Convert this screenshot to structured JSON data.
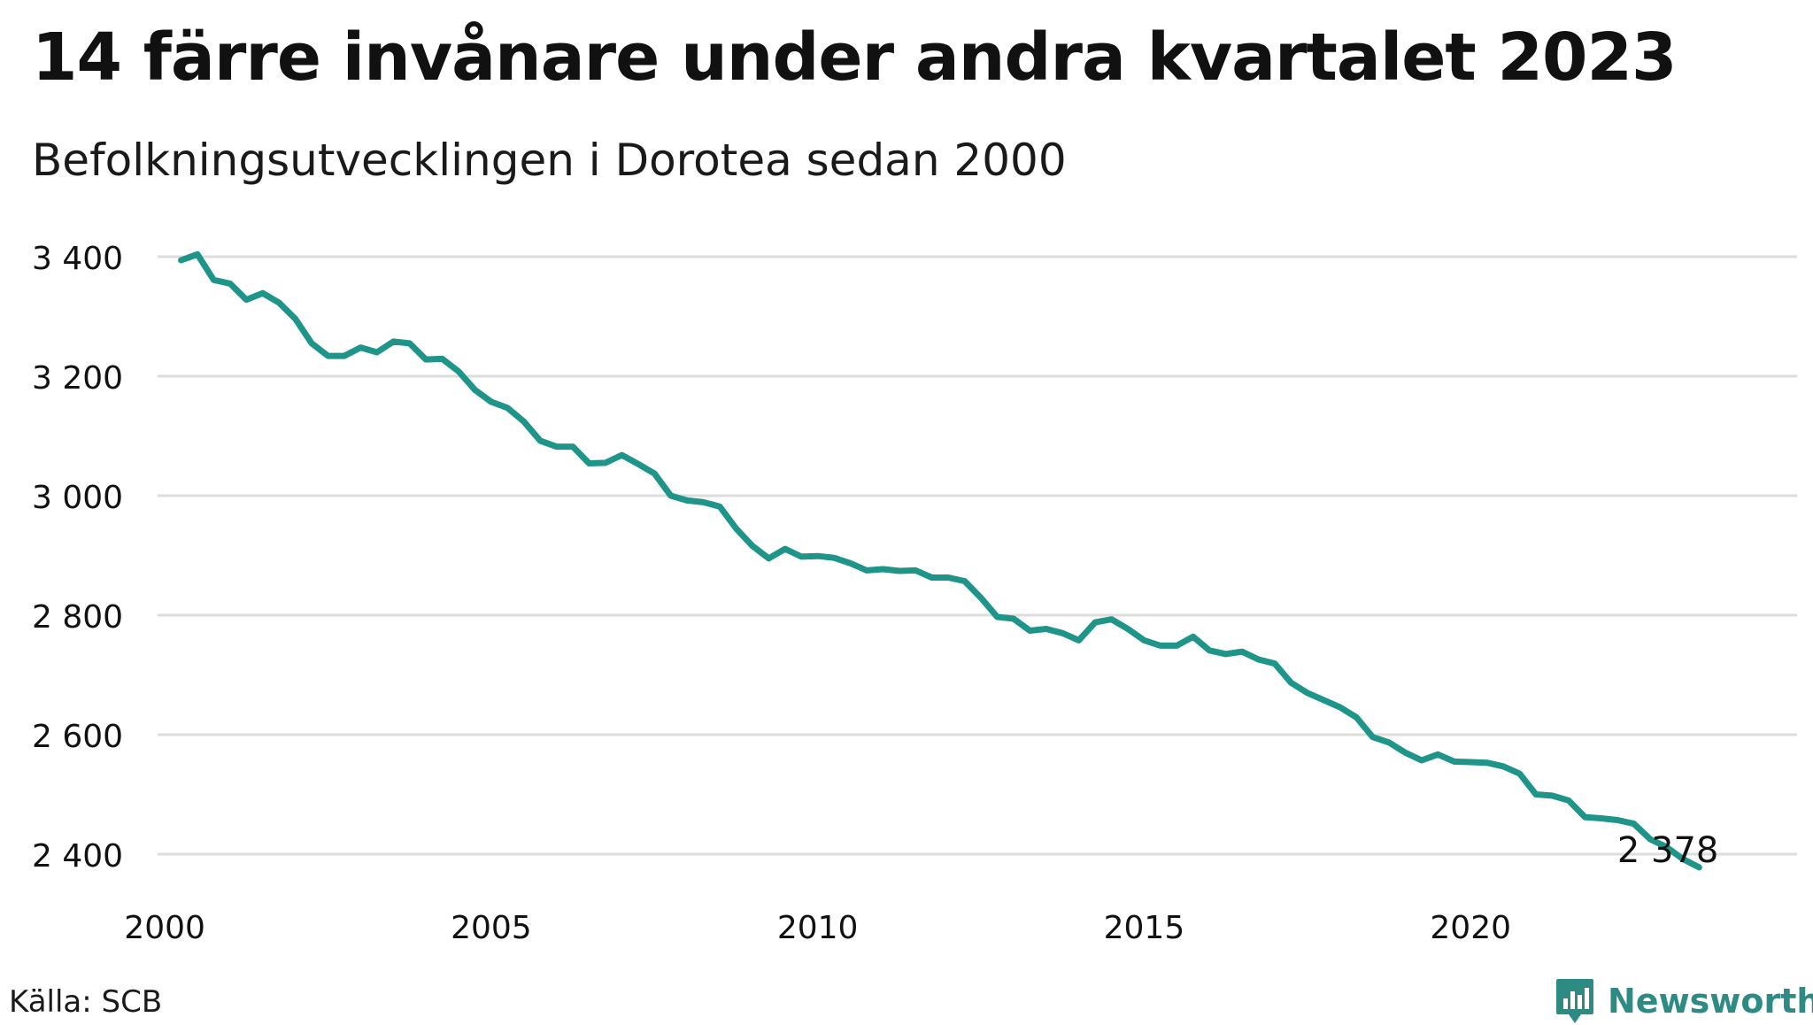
{
  "title": "14 färre invånare under andra kvartalet 2023",
  "subtitle": "Befolkningsutvecklingen i Dorotea sedan 2000",
  "source": "Källa: SCB",
  "brand": {
    "name": "Newsworthy",
    "color": "#2e8b84",
    "icon": "bar-chart-speech-bubble-icon"
  },
  "colors": {
    "line": "#1f9488",
    "grid": "#dddddd",
    "text": "#111111"
  },
  "chart_data": {
    "type": "line",
    "title": "14 färre invånare under andra kvartalet 2023",
    "subtitle": "Befolkningsutvecklingen i Dorotea sedan 2000",
    "xlabel": "",
    "ylabel": "",
    "xlim": [
      2000,
      2024
    ],
    "ylim": [
      2400,
      3400
    ],
    "x_ticks": [
      2000,
      2005,
      2010,
      2015,
      2020
    ],
    "x_tick_labels": [
      "2000",
      "2005",
      "2010",
      "2015",
      "2020"
    ],
    "y_ticks": [
      2400,
      2600,
      2800,
      3000,
      3200,
      3400
    ],
    "y_tick_labels": [
      "2 400",
      "2 600",
      "2 800",
      "3 000",
      "3 200",
      "3 400"
    ],
    "grid": "horizontal",
    "end_label": "2 378",
    "series": [
      {
        "x": [
          2000.25,
          2000.5,
          2000.75,
          2001.0,
          2001.25,
          2001.5,
          2001.75,
          2002.0,
          2002.25,
          2002.5,
          2002.75,
          2003.0,
          2003.25,
          2003.5,
          2003.75,
          2004.0,
          2004.25,
          2004.5,
          2004.75,
          2005.0,
          2005.25,
          2005.5,
          2005.75,
          2006.0,
          2006.25,
          2006.5,
          2006.75,
          2007.0,
          2007.25,
          2007.5,
          2007.75,
          2008.0,
          2008.25,
          2008.5,
          2008.75,
          2009.0,
          2009.25,
          2009.5,
          2009.75,
          2010.0,
          2010.25,
          2010.5,
          2010.75,
          2011.0,
          2011.25,
          2011.5,
          2011.75,
          2012.0,
          2012.25,
          2012.5,
          2012.75,
          2013.0,
          2013.25,
          2013.5,
          2013.75,
          2014.0,
          2014.25,
          2014.5,
          2014.75,
          2015.0,
          2015.25,
          2015.5,
          2015.75,
          2016.0,
          2016.25,
          2016.5,
          2016.75,
          2017.0,
          2017.25,
          2017.5,
          2017.75,
          2018.0,
          2018.25,
          2018.5,
          2018.75,
          2019.0,
          2019.25,
          2019.5,
          2019.75,
          2020.0,
          2020.25,
          2020.5,
          2020.75,
          2021.0,
          2021.25,
          2021.5,
          2021.75,
          2022.0,
          2022.25,
          2022.5,
          2022.75,
          2023.0,
          2023.25,
          2023.5
        ],
        "values": [
          3394,
          3404,
          3361,
          3355,
          3328,
          3339,
          3323,
          3296,
          3255,
          3234,
          3234,
          3248,
          3240,
          3258,
          3255,
          3228,
          3229,
          3208,
          3177,
          3157,
          3147,
          3124,
          3092,
          3082,
          3082,
          3054,
          3055,
          3068,
          3053,
          3037,
          3000,
          2992,
          2989,
          2982,
          2945,
          2916,
          2895,
          2911,
          2898,
          2899,
          2896,
          2887,
          2875,
          2877,
          2874,
          2875,
          2863,
          2863,
          2857,
          2829,
          2797,
          2794,
          2774,
          2777,
          2770,
          2758,
          2788,
          2793,
          2777,
          2758,
          2749,
          2749,
          2764,
          2741,
          2735,
          2739,
          2726,
          2719,
          2687,
          2670,
          2658,
          2646,
          2629,
          2596,
          2587,
          2570,
          2557,
          2567,
          2555,
          2554,
          2553,
          2547,
          2535,
          2500,
          2498,
          2490,
          2462,
          2460,
          2457,
          2451,
          2425,
          2412,
          2392,
          2378
        ]
      }
    ]
  }
}
